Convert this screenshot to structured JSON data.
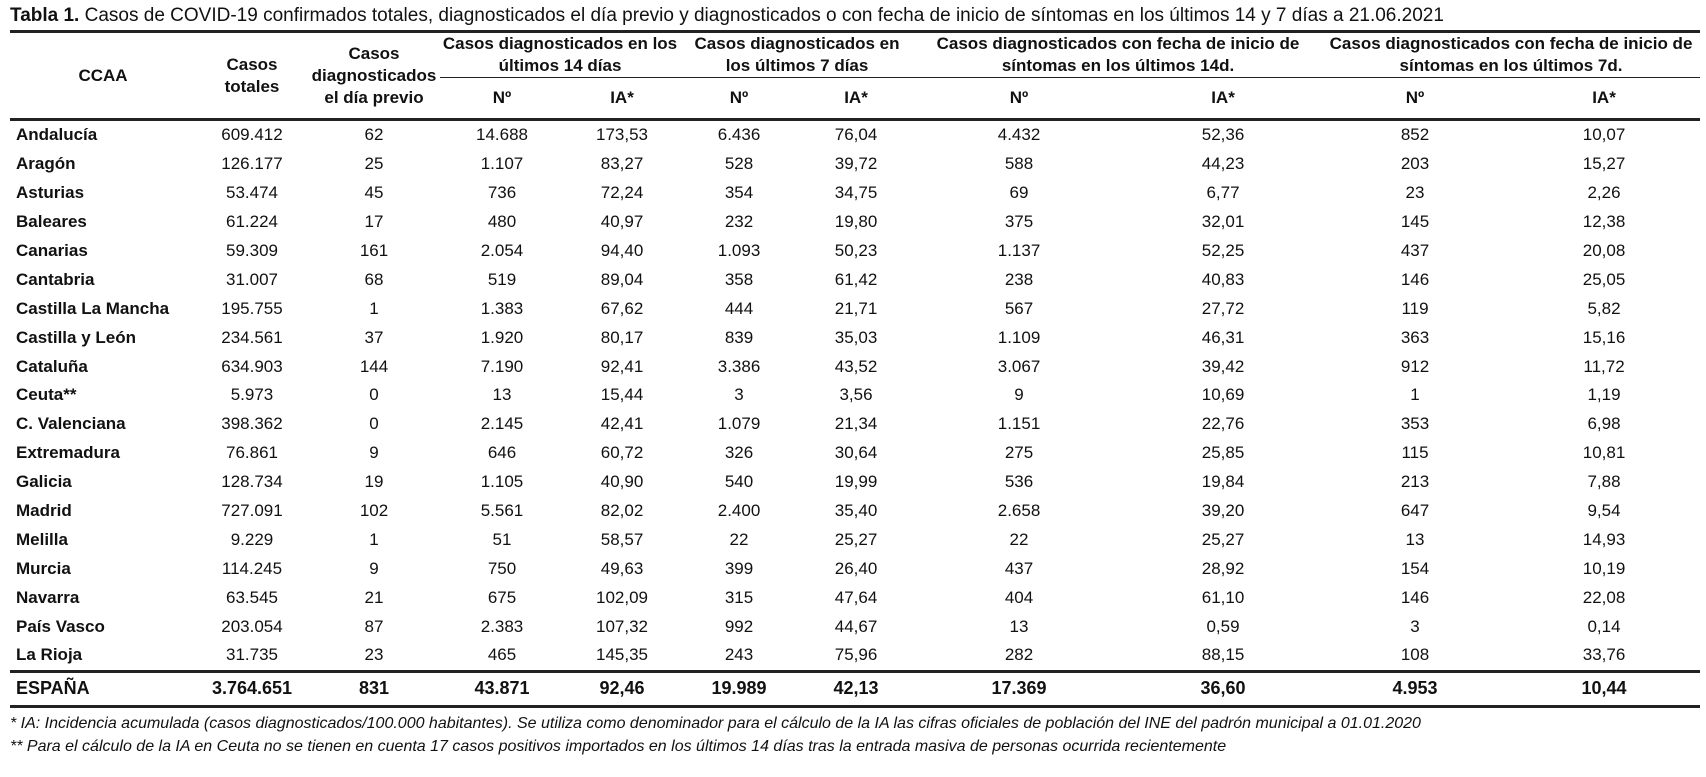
{
  "caption": {
    "label": "Tabla 1.",
    "text": " Casos de COVID-19 confirmados totales, diagnosticados el día previo y diagnosticados o con fecha de inicio de síntomas en los últimos 14 y 7 días a 21.06.2021"
  },
  "headers": {
    "ccaa": "CCAA",
    "casos_totales": "Casos totales",
    "casos_dia_previo": "Casos diagnosticados el día previo",
    "diag_14": "Casos diagnosticados en los últimos 14 días",
    "diag_7": "Casos diagnosticados en los últimos 7 días",
    "sint_14": "Casos diagnosticados con fecha de inicio de síntomas en los últimos 14d.",
    "sint_7": "Casos diagnosticados con fecha de inicio de síntomas en los últimos 7d.",
    "n": "Nº",
    "ia": "IA*"
  },
  "rows": [
    [
      "Andalucía",
      "609.412",
      "62",
      "14.688",
      "173,53",
      "6.436",
      "76,04",
      "4.432",
      "52,36",
      "852",
      "10,07"
    ],
    [
      "Aragón",
      "126.177",
      "25",
      "1.107",
      "83,27",
      "528",
      "39,72",
      "588",
      "44,23",
      "203",
      "15,27"
    ],
    [
      "Asturias",
      "53.474",
      "45",
      "736",
      "72,24",
      "354",
      "34,75",
      "69",
      "6,77",
      "23",
      "2,26"
    ],
    [
      "Baleares",
      "61.224",
      "17",
      "480",
      "40,97",
      "232",
      "19,80",
      "375",
      "32,01",
      "145",
      "12,38"
    ],
    [
      "Canarias",
      "59.309",
      "161",
      "2.054",
      "94,40",
      "1.093",
      "50,23",
      "1.137",
      "52,25",
      "437",
      "20,08"
    ],
    [
      "Cantabria",
      "31.007",
      "68",
      "519",
      "89,04",
      "358",
      "61,42",
      "238",
      "40,83",
      "146",
      "25,05"
    ],
    [
      "Castilla La Mancha",
      "195.755",
      "1",
      "1.383",
      "67,62",
      "444",
      "21,71",
      "567",
      "27,72",
      "119",
      "5,82"
    ],
    [
      "Castilla y León",
      "234.561",
      "37",
      "1.920",
      "80,17",
      "839",
      "35,03",
      "1.109",
      "46,31",
      "363",
      "15,16"
    ],
    [
      "Cataluña",
      "634.903",
      "144",
      "7.190",
      "92,41",
      "3.386",
      "43,52",
      "3.067",
      "39,42",
      "912",
      "11,72"
    ],
    [
      "Ceuta**",
      "5.973",
      "0",
      "13",
      "15,44",
      "3",
      "3,56",
      "9",
      "10,69",
      "1",
      "1,19"
    ],
    [
      "C. Valenciana",
      "398.362",
      "0",
      "2.145",
      "42,41",
      "1.079",
      "21,34",
      "1.151",
      "22,76",
      "353",
      "6,98"
    ],
    [
      "Extremadura",
      "76.861",
      "9",
      "646",
      "60,72",
      "326",
      "30,64",
      "275",
      "25,85",
      "115",
      "10,81"
    ],
    [
      "Galicia",
      "128.734",
      "19",
      "1.105",
      "40,90",
      "540",
      "19,99",
      "536",
      "19,84",
      "213",
      "7,88"
    ],
    [
      "Madrid",
      "727.091",
      "102",
      "5.561",
      "82,02",
      "2.400",
      "35,40",
      "2.658",
      "39,20",
      "647",
      "9,54"
    ],
    [
      "Melilla",
      "9.229",
      "1",
      "51",
      "58,57",
      "22",
      "25,27",
      "22",
      "25,27",
      "13",
      "14,93"
    ],
    [
      "Murcia",
      "114.245",
      "9",
      "750",
      "49,63",
      "399",
      "26,40",
      "437",
      "28,92",
      "154",
      "10,19"
    ],
    [
      "Navarra",
      "63.545",
      "21",
      "675",
      "102,09",
      "315",
      "47,64",
      "404",
      "61,10",
      "146",
      "22,08"
    ],
    [
      "País Vasco",
      "203.054",
      "87",
      "2.383",
      "107,32",
      "992",
      "44,67",
      "13",
      "0,59",
      "3",
      "0,14"
    ],
    [
      "La Rioja",
      "31.735",
      "23",
      "465",
      "145,35",
      "243",
      "75,96",
      "282",
      "88,15",
      "108",
      "33,76"
    ]
  ],
  "total": [
    "ESPAÑA",
    "3.764.651",
    "831",
    "43.871",
    "92,46",
    "19.989",
    "42,13",
    "17.369",
    "36,60",
    "4.953",
    "10,44"
  ],
  "notes": [
    "* IA: Incidencia acumulada (casos diagnosticados/100.000 habitantes). Se utiliza como denominador para el cálculo de la IA las cifras oficiales de población del INE del padrón municipal a 01.01.2020",
    "** Para el cálculo de la IA en Ceuta no se tienen en cuenta 17 casos positivos importados en los últimos 14 días tras la entrada masiva de personas ocurrida recientemente"
  ]
}
